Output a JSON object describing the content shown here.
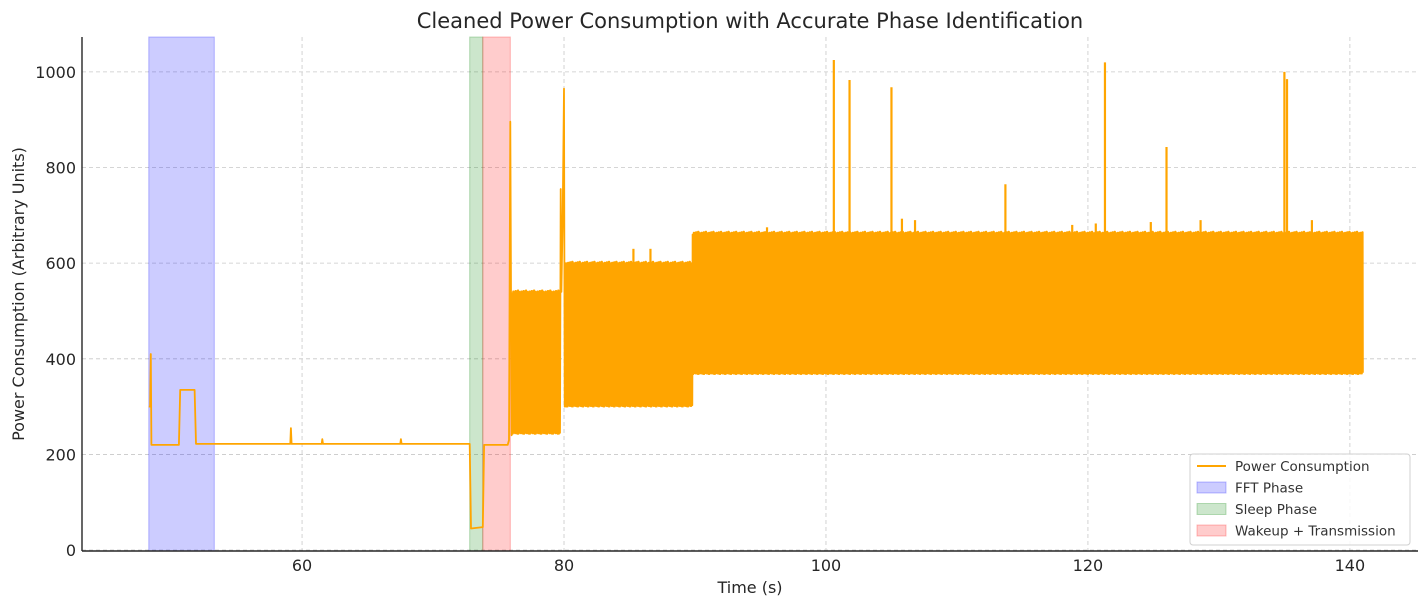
{
  "chart_data": {
    "type": "line",
    "title": "Cleaned Power Consumption with Accurate Phase Identification",
    "xlabel": "Time (s)",
    "ylabel": "Power Consumption (Arbitrary Units)",
    "xlim": [
      43.2,
      145.2
    ],
    "ylim": [
      -2,
      1073
    ],
    "xticks": [
      60,
      80,
      100,
      120,
      140
    ],
    "yticks": [
      0,
      200,
      400,
      600,
      800,
      1000
    ],
    "grid": true,
    "legend_position": "lower-right",
    "series": [
      {
        "name": "Power Consumption",
        "color": "#FFA500",
        "segments": [
          {
            "t": [
              48.3,
              48.4,
              48.45,
              48.5,
              48.6,
              50.6,
              50.7,
              51.8,
              51.9,
              53.0
            ],
            "y": [
              300,
              300,
              410,
              220,
              220,
              220,
              335,
              335,
              222,
              222
            ],
            "mode": "steps"
          },
          {
            "t": [
              53.0,
              59.1,
              59.15,
              59.2,
              61.5,
              61.55,
              61.6,
              67.5,
              67.55,
              67.6,
              72.7
            ],
            "y": [
              222,
              222,
              255,
              222,
              222,
              232,
              222,
              222,
              232,
              222,
              222
            ],
            "mode": "steps"
          },
          {
            "t": [
              72.8,
              72.9,
              73.8,
              73.9,
              75.7,
              75.8,
              75.9,
              76.0
            ],
            "y": [
              222,
              45,
              48,
              220,
              220,
              230,
              896,
              240
            ],
            "mode": "steps"
          },
          {
            "t0": 76.0,
            "t1": 79.7,
            "n": 42,
            "low": 245,
            "high": 540,
            "mode": "osc"
          },
          {
            "t": [
              79.7,
              79.75,
              79.8,
              79.9,
              80.0,
              80.05,
              80.1,
              80.15,
              80.2
            ],
            "y": [
              300,
              755,
              540,
              700,
              965,
              300,
              600,
              300,
              600
            ],
            "mode": "steps"
          },
          {
            "t0": 80.2,
            "t1": 89.8,
            "n": 120,
            "low": 302,
            "high": 600,
            "mode": "osc"
          },
          {
            "t0": 89.8,
            "t1": 141.0,
            "n": 620,
            "low": 370,
            "high": 663,
            "mode": "osc"
          }
        ],
        "spikes": [
          {
            "t": 100.6,
            "y": 1025
          },
          {
            "t": 101.8,
            "y": 983
          },
          {
            "t": 105.0,
            "y": 968
          },
          {
            "t": 113.7,
            "y": 765
          },
          {
            "t": 121.3,
            "y": 1020
          },
          {
            "t": 126.0,
            "y": 843
          },
          {
            "t": 135.0,
            "y": 1000
          },
          {
            "t": 135.2,
            "y": 985
          },
          {
            "t": 85.3,
            "y": 630
          },
          {
            "t": 86.6,
            "y": 630
          },
          {
            "t": 95.5,
            "y": 675
          },
          {
            "t": 105.8,
            "y": 693
          },
          {
            "t": 106.8,
            "y": 690
          },
          {
            "t": 118.8,
            "y": 680
          },
          {
            "t": 120.6,
            "y": 683
          },
          {
            "t": 124.8,
            "y": 686
          },
          {
            "t": 128.6,
            "y": 690
          },
          {
            "t": 137.1,
            "y": 690
          }
        ]
      }
    ],
    "phases": [
      {
        "name": "FFT Phase",
        "start": 48.3,
        "end": 53.3,
        "color": "#0000FF"
      },
      {
        "name": "Sleep Phase",
        "start": 72.8,
        "end": 73.8,
        "color": "#008000"
      },
      {
        "name": "Wakeup + Transmission",
        "start": 73.8,
        "end": 75.9,
        "color": "#FF0000"
      }
    ]
  }
}
